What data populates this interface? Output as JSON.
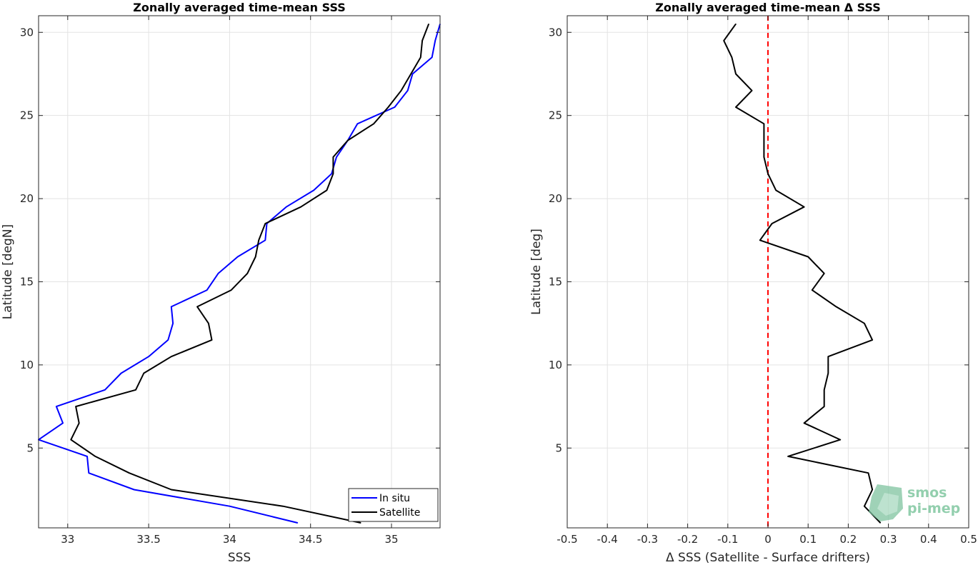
{
  "logo": {
    "line1": "smos",
    "line2": "pi-mep"
  },
  "chart_data": [
    {
      "type": "line",
      "title": "Zonally averaged time-mean SSS",
      "xlabel": "SSS",
      "ylabel": "Latitude [degN]",
      "xlim": [
        32.82,
        35.3
      ],
      "ylim": [
        0.2,
        31
      ],
      "x_ticks": [
        33,
        33.5,
        34,
        34.5,
        35
      ],
      "x_tick_labels": [
        "33",
        "33.5",
        "34",
        "34.5",
        "35"
      ],
      "y_ticks": [
        5,
        10,
        15,
        20,
        25,
        30
      ],
      "y_tick_labels": [
        "5",
        "10",
        "15",
        "20",
        "25",
        "30"
      ],
      "grid": true,
      "legend": "bottom-right",
      "y": [
        0.5,
        1.5,
        2.5,
        3.5,
        4.5,
        5.5,
        6.5,
        7.5,
        8.5,
        9.5,
        10.5,
        11.5,
        12.5,
        13.5,
        14.5,
        15.5,
        16.5,
        17.5,
        18.5,
        19.5,
        20.5,
        21.5,
        22.5,
        23.5,
        24.5,
        25.5,
        26.5,
        27.5,
        28.5,
        29.5,
        30.5
      ],
      "series": [
        {
          "name": "In situ",
          "color": "#0000ff",
          "x": [
            34.42,
            34.0,
            33.41,
            33.13,
            33.12,
            32.82,
            32.97,
            32.93,
            33.23,
            33.33,
            33.5,
            33.62,
            33.65,
            33.64,
            33.86,
            33.93,
            34.05,
            34.22,
            34.23,
            34.35,
            34.52,
            34.63,
            34.66,
            34.73,
            34.79,
            35.02,
            35.1,
            35.13,
            35.25,
            35.27,
            35.3
          ]
        },
        {
          "name": "Satellite",
          "color": "#000000",
          "x": [
            34.81,
            34.33,
            33.64,
            33.38,
            33.17,
            33.02,
            33.07,
            33.05,
            33.42,
            33.47,
            33.64,
            33.89,
            33.87,
            33.8,
            34.01,
            34.11,
            34.16,
            34.18,
            34.22,
            34.44,
            34.6,
            34.64,
            34.64,
            34.73,
            34.89,
            34.98,
            35.06,
            35.12,
            35.18,
            35.19,
            35.23
          ]
        }
      ]
    },
    {
      "type": "line",
      "title": "Zonally averaged time-mean Δ SSS",
      "xlabel": "Δ SSS (Satellite - Surface drifters)",
      "ylabel": "Latitude [deg]",
      "xlim": [
        -0.5,
        0.5
      ],
      "ylim": [
        0.2,
        31
      ],
      "x_ticks": [
        -0.5,
        -0.4,
        -0.3,
        -0.2,
        -0.1,
        0,
        0.1,
        0.2,
        0.3,
        0.4,
        0.5
      ],
      "x_tick_labels": [
        "-0.5",
        "-0.4",
        "-0.3",
        "-0.2",
        "-0.1",
        "0",
        "0.1",
        "0.2",
        "0.3",
        "0.4",
        "0.5"
      ],
      "y_ticks": [
        5,
        10,
        15,
        20,
        25,
        30
      ],
      "y_tick_labels": [
        "5",
        "10",
        "15",
        "20",
        "25",
        "30"
      ],
      "grid": true,
      "reference_line": {
        "x": 0,
        "color": "#ff0000",
        "style": "dashed"
      },
      "y": [
        0.5,
        1.5,
        2.5,
        3.5,
        4.5,
        5.5,
        6.5,
        7.5,
        8.5,
        9.5,
        10.5,
        11.5,
        12.5,
        13.5,
        14.5,
        15.5,
        16.5,
        17.5,
        18.5,
        19.5,
        20.5,
        21.5,
        22.5,
        23.5,
        24.5,
        25.5,
        26.5,
        27.5,
        28.5,
        29.5,
        30.5
      ],
      "series": [
        {
          "color": "#000000",
          "x": [
            0.28,
            0.24,
            0.26,
            0.25,
            0.05,
            0.18,
            0.09,
            0.14,
            0.14,
            0.15,
            0.15,
            0.26,
            0.24,
            0.17,
            0.11,
            0.14,
            0.1,
            -0.02,
            0.01,
            0.09,
            0.02,
            0.0,
            -0.01,
            -0.01,
            -0.01,
            -0.08,
            -0.04,
            -0.08,
            -0.09,
            -0.11,
            -0.08
          ]
        }
      ]
    }
  ]
}
